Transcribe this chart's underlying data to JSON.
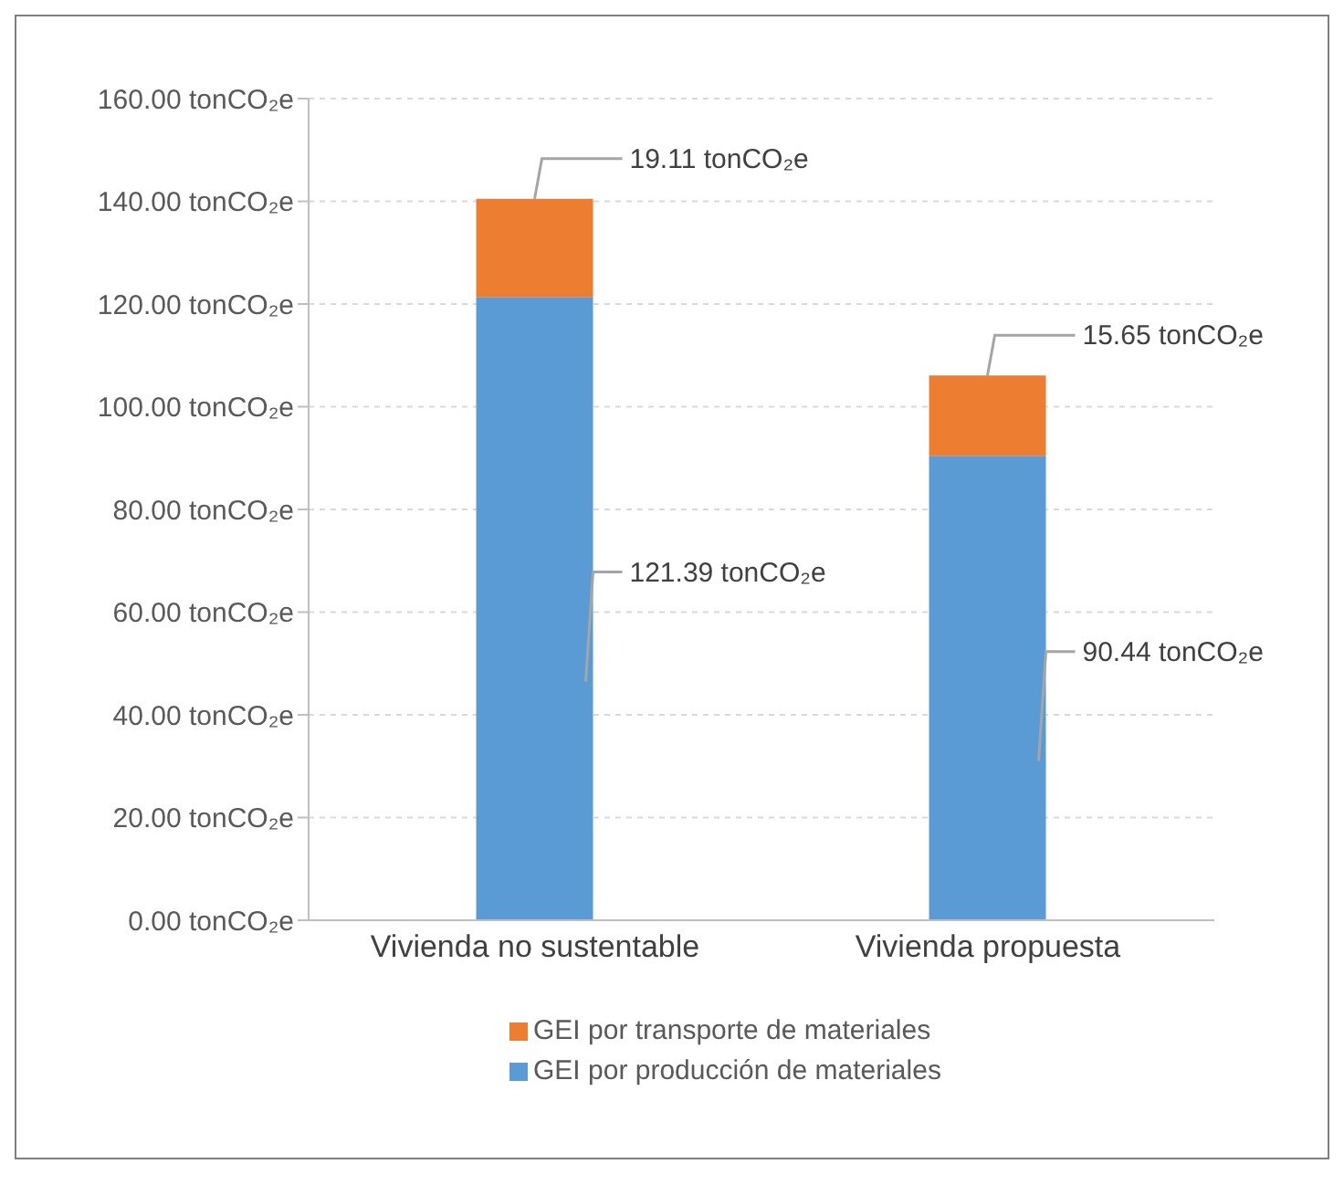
{
  "chart_data": {
    "type": "bar",
    "stacked": true,
    "categories": [
      "Vivienda no sustentable",
      "Vivienda propuesta"
    ],
    "series": [
      {
        "name": "GEI por producción de materiales",
        "color": "#5b9bd5",
        "values": [
          121.39,
          90.44
        ],
        "value_labels": [
          "121.39 tonCO₂e",
          "90.44 tonCO₂e"
        ]
      },
      {
        "name": "GEI por transporte de materiales",
        "color": "#ed7d31",
        "values": [
          19.11,
          15.65
        ],
        "value_labels": [
          "19.11 tonCO₂e",
          "15.65 tonCO₂e"
        ]
      }
    ],
    "ylim": [
      0,
      160
    ],
    "yticks": [
      {
        "value": 0,
        "label": "0.00 tonCO₂e"
      },
      {
        "value": 20,
        "label": "20.00 tonCO₂e"
      },
      {
        "value": 40,
        "label": "40.00 tonCO₂e"
      },
      {
        "value": 60,
        "label": "60.00 tonCO₂e"
      },
      {
        "value": 80,
        "label": "80.00 tonCO₂e"
      },
      {
        "value": 100,
        "label": "100.00 tonCO₂e"
      },
      {
        "value": 120,
        "label": "120.00 tonCO₂e"
      },
      {
        "value": 140,
        "label": "140.00 tonCO₂e"
      },
      {
        "value": 160,
        "label": "160.00 tonCO₂e"
      }
    ],
    "grid": "y",
    "legend": "bottom"
  }
}
